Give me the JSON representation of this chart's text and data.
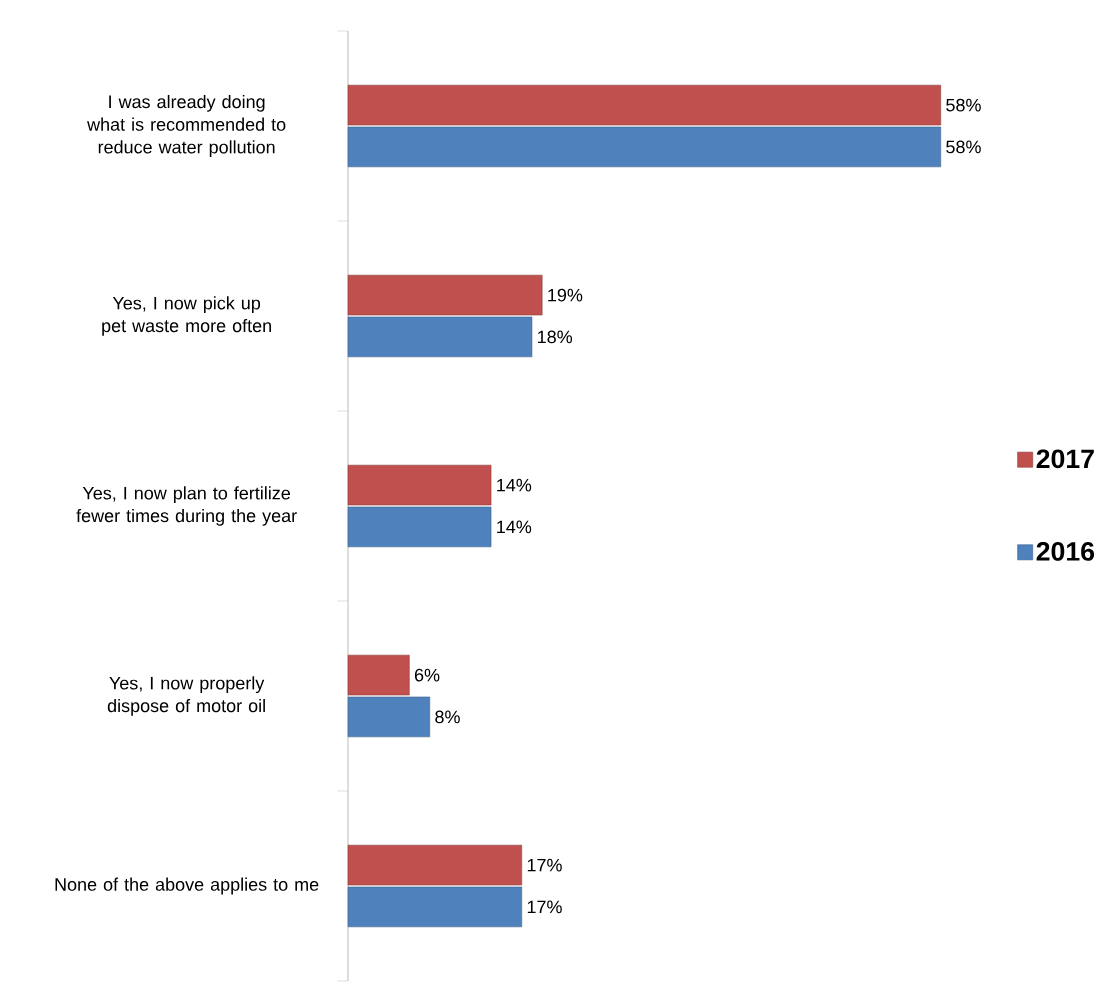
{
  "chart_data": {
    "type": "bar",
    "orientation": "horizontal",
    "categories": [
      "I was already doing what is recommended to reduce water pollution",
      "Yes, I now pick up pet waste more often",
      "Yes, I now plan to fertilize fewer times during the year",
      "Yes, I now properly dispose of motor oil",
      "None of the above applies to me"
    ],
    "series": [
      {
        "name": "2017",
        "color": "#c0504d",
        "values": [
          58,
          19,
          14,
          6,
          17
        ],
        "value_labels": [
          "58%",
          "19%",
          "14%",
          "6%",
          "17%"
        ]
      },
      {
        "name": "2016",
        "color": "#4f81bd",
        "values": [
          58,
          18,
          14,
          8,
          17
        ],
        "value_labels": [
          "58%",
          "18%",
          "14%",
          "8%",
          "17%"
        ]
      }
    ],
    "legend": "right"
  }
}
